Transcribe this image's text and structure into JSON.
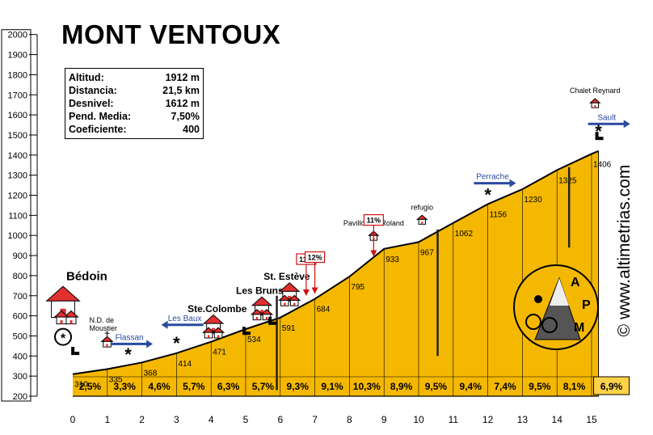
{
  "title": "MONT VENTOUX",
  "info": {
    "rows": [
      {
        "label": "Altitud:",
        "value": "1912 m"
      },
      {
        "label": "Distancia:",
        "value": "21,5 km"
      },
      {
        "label": "Desnivel:",
        "value": "1612 m"
      },
      {
        "label": "Pend. Media:",
        "value": "7,50%"
      },
      {
        "label": "Coeficiente:",
        "value": "400"
      }
    ]
  },
  "watermark": "© www.altimetrias.com",
  "logo_text": "APM",
  "colors": {
    "fill": "#f5b800",
    "fill_light": "#ffd24a",
    "house": "#e23030",
    "arrow": "#2a4aa0",
    "red_box": "#d01010"
  },
  "chart_data": {
    "type": "area",
    "title": "MONT VENTOUX",
    "xlabel": "",
    "ylabel": "",
    "xlim": [
      0,
      16
    ],
    "ylim": [
      200,
      2000
    ],
    "x_ticks": [
      "0",
      "1",
      "2",
      "3",
      "4",
      "5",
      "6",
      "7",
      "8",
      "9",
      "10",
      "11",
      "12",
      "13",
      "14",
      "15"
    ],
    "y_ticks": [
      "200",
      "300",
      "400",
      "500",
      "600",
      "700",
      "800",
      "900",
      "1000",
      "1100",
      "1200",
      "1300",
      "1400",
      "1500",
      "1600",
      "1700",
      "1800",
      "1900",
      "2000"
    ],
    "profile": [
      {
        "x": 0,
        "y": 310
      },
      {
        "x": 1,
        "y": 335
      },
      {
        "x": 2,
        "y": 368
      },
      {
        "x": 3,
        "y": 414
      },
      {
        "x": 4,
        "y": 471
      },
      {
        "x": 5,
        "y": 534
      },
      {
        "x": 6,
        "y": 591
      },
      {
        "x": 7,
        "y": 684
      },
      {
        "x": 8,
        "y": 795
      },
      {
        "x": 9,
        "y": 933
      },
      {
        "x": 10,
        "y": 967
      },
      {
        "x": 11,
        "y": 1062
      },
      {
        "x": 12,
        "y": 1156
      },
      {
        "x": 13,
        "y": 1230
      },
      {
        "x": 14,
        "y": 1325
      },
      {
        "x": 15,
        "y": 1406
      },
      {
        "x": 15.2,
        "y": 1420
      }
    ],
    "km_labels": [
      {
        "x": 0,
        "label": "310"
      },
      {
        "x": 1,
        "label": "335"
      },
      {
        "x": 2,
        "label": "368"
      },
      {
        "x": 3,
        "label": "414"
      },
      {
        "x": 4,
        "label": "471"
      },
      {
        "x": 5,
        "label": "534"
      },
      {
        "x": 6,
        "label": "591"
      },
      {
        "x": 7,
        "label": "684"
      },
      {
        "x": 8,
        "label": "795"
      },
      {
        "x": 9,
        "label": "933"
      },
      {
        "x": 10,
        "label": "967"
      },
      {
        "x": 11,
        "label": "1062"
      },
      {
        "x": 12,
        "label": "1156"
      },
      {
        "x": 13,
        "label": "1230"
      },
      {
        "x": 14,
        "label": "1325"
      },
      {
        "x": 15,
        "label": "1406"
      }
    ],
    "gradients": [
      "2,5%",
      "3,3%",
      "4,6%",
      "5,7%",
      "6,3%",
      "5,7%",
      "9,3%",
      "9,1%",
      "10,3%",
      "8,9%",
      "9,5%",
      "9,4%",
      "7,4%",
      "9,5%",
      "8,1%",
      "6,9%"
    ],
    "places": [
      {
        "x": 0,
        "y": 600,
        "label": "Bédoin",
        "size": "big"
      },
      {
        "x": 0.9,
        "y": 445,
        "label": "N.D. de",
        "label2": "Moustier",
        "size": "tiny"
      },
      {
        "x": 3.6,
        "y": 530,
        "label": "Ste.Colombe",
        "size": "medium"
      },
      {
        "x": 5.0,
        "y": 620,
        "label": "Les Bruns",
        "size": "medium"
      },
      {
        "x": 5.8,
        "y": 690,
        "label": "St. Estève",
        "size": "medium"
      },
      {
        "x": 8.7,
        "y": 1000,
        "label": "Pavillon de Roland",
        "size": "small"
      },
      {
        "x": 10.1,
        "y": 1080,
        "label": "refugio",
        "size": "small"
      },
      {
        "x": 15.1,
        "y": 1660,
        "label": "Chalet Reynard",
        "size": "small"
      }
    ],
    "turnoffs": [
      {
        "x": 1.1,
        "y": 460,
        "label": "Flassan",
        "dir": "right"
      },
      {
        "x": 2.7,
        "y": 555,
        "label": "Les Baux",
        "dir": "left"
      },
      {
        "x": 11.6,
        "y": 1260,
        "label": "Perrache",
        "dir": "right"
      },
      {
        "x": 14.9,
        "y": 1555,
        "label": "Sault",
        "dir": "right"
      }
    ],
    "max_gradients": [
      {
        "x": 6.75,
        "y": 860,
        "label": "11%"
      },
      {
        "x": 7.0,
        "y": 870,
        "label": "12%"
      },
      {
        "x": 8.7,
        "y": 1055,
        "label": "11%"
      }
    ],
    "markers": [
      {
        "x": 1.6,
        "y": 410,
        "type": "star"
      },
      {
        "x": 3.0,
        "y": 465,
        "type": "star"
      },
      {
        "x": 12.0,
        "y": 1205,
        "type": "star"
      },
      {
        "x": 15.2,
        "y": 1520,
        "type": "star"
      }
    ]
  }
}
